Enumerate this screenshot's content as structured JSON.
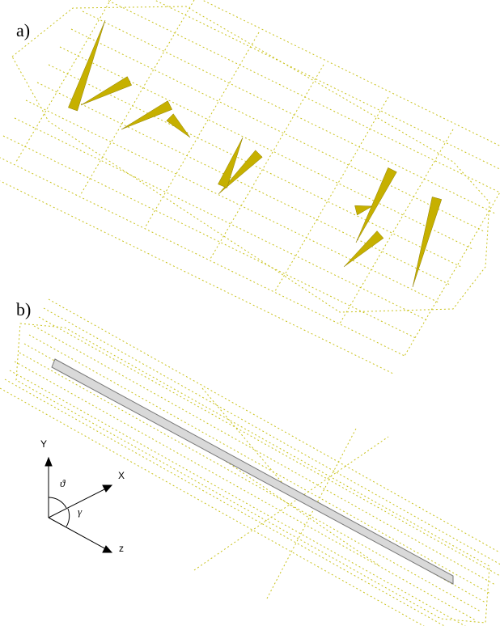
{
  "panels": [
    {
      "label": "a)"
    },
    {
      "label": "b)",
      "axes": {
        "y": "Y",
        "x": "X",
        "z": "z",
        "theta": "ϑ",
        "gamma": "γ"
      }
    }
  ]
}
